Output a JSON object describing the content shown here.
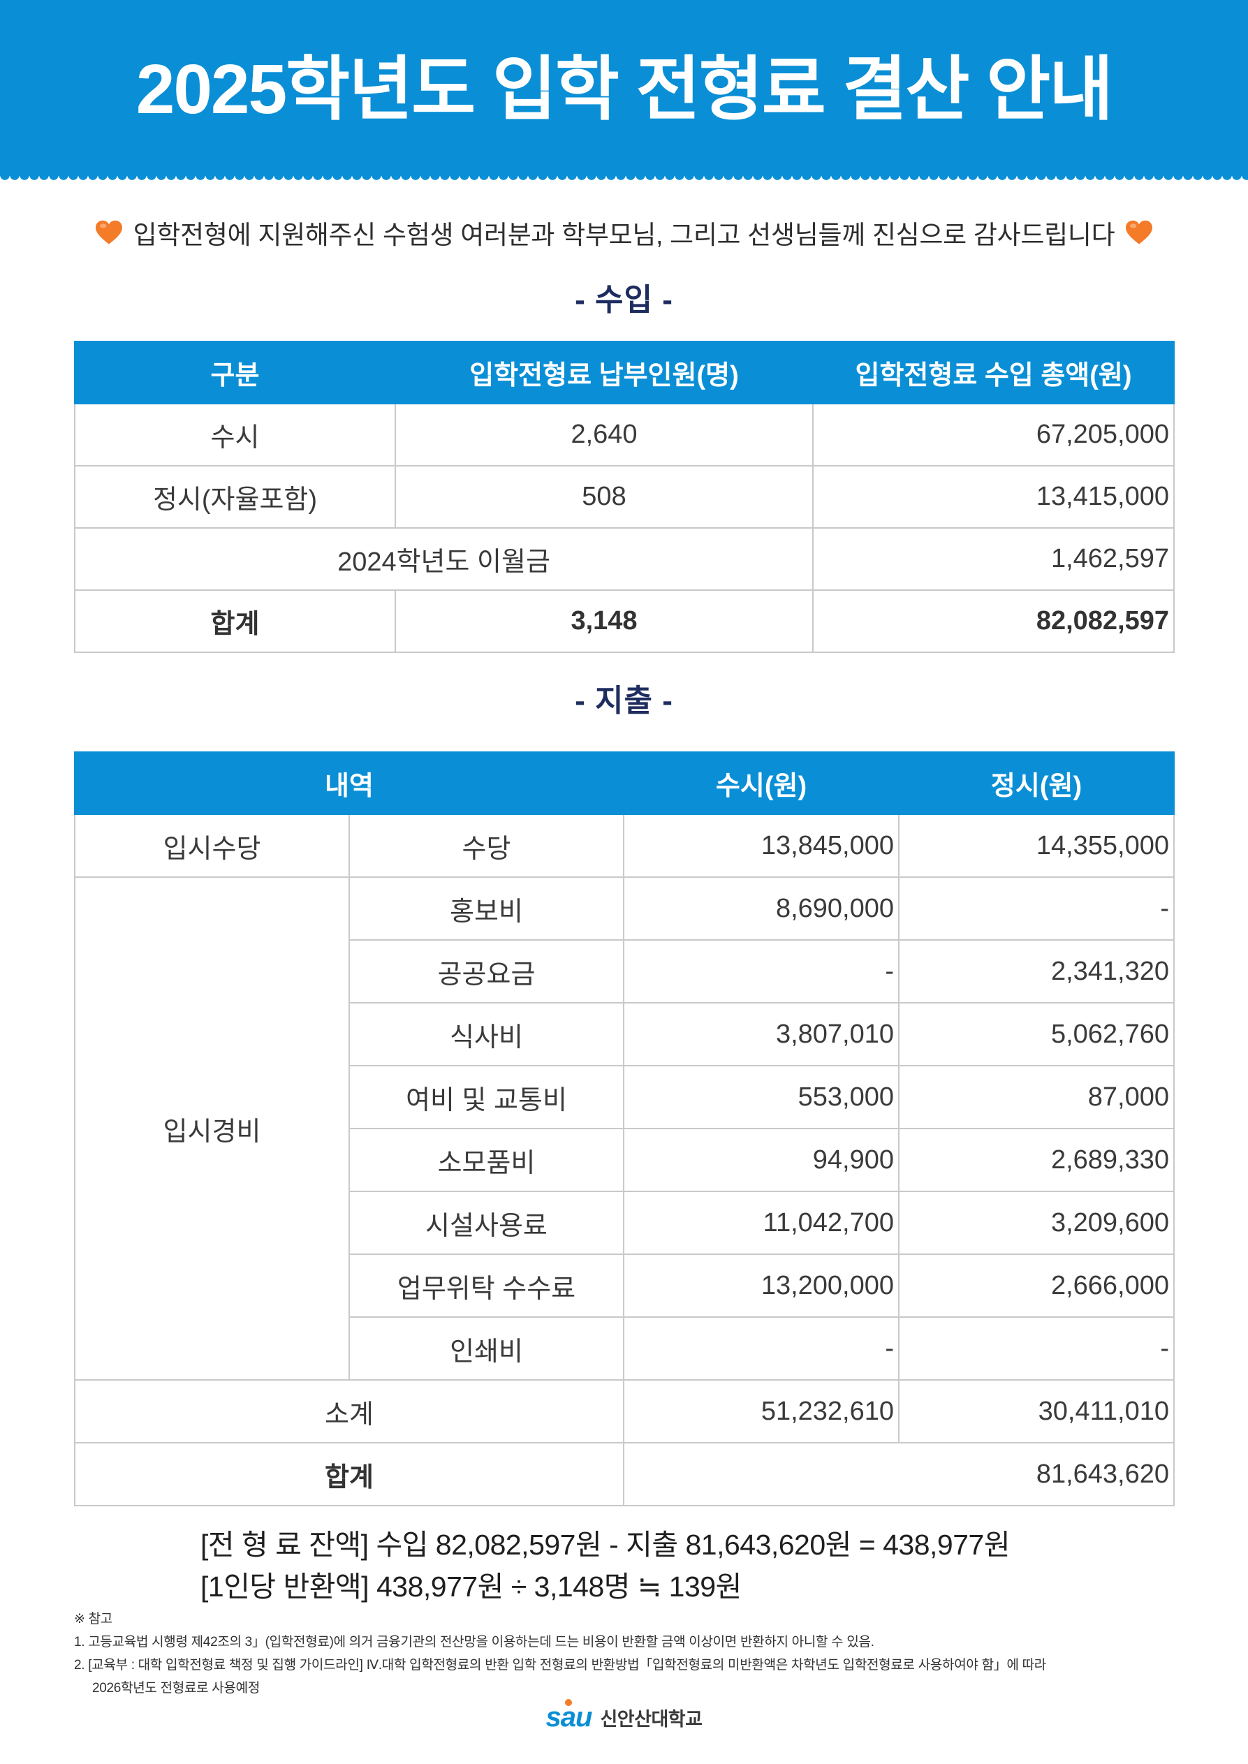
{
  "colors": {
    "primary": "#0a8fd6",
    "heading": "#1e2d5f",
    "heart": "#f47b28",
    "border": "#c9c9c9",
    "text": "#3a3a3a"
  },
  "header": {
    "title": "2025학년도 입학 전형료 결산 안내"
  },
  "greeting": {
    "icon": "heart-icon",
    "text": "입학전형에 지원해주신 수험생 여러분과 학부모님, 그리고 선생님들께 진심으로 감사드립니다"
  },
  "income": {
    "heading": "- 수입 -",
    "columns": {
      "category": "구분",
      "count": "입학전형료 납부인원(명)",
      "amount": "입학전형료 수입 총액(원)"
    },
    "rows": [
      {
        "category": "수시",
        "count": "2,640",
        "amount": "67,205,000"
      },
      {
        "category": "정시(자율포함)",
        "count": "508",
        "amount": "13,415,000"
      }
    ],
    "carryover": {
      "label": "2024학년도 이월금",
      "amount": "1,462,597"
    },
    "total": {
      "label": "합계",
      "count": "3,148",
      "amount": "82,082,597"
    }
  },
  "expense": {
    "heading": "- 지출 -",
    "columns": {
      "detail": "내역",
      "susi": "수시(원)",
      "jeongsi": "정시(원)"
    },
    "allowance": {
      "category": "입시수당",
      "items": [
        {
          "name": "수당",
          "susi": "13,845,000",
          "jeongsi": "14,355,000"
        }
      ]
    },
    "costs": {
      "category": "입시경비",
      "items": [
        {
          "name": "홍보비",
          "susi": "8,690,000",
          "jeongsi": "-"
        },
        {
          "name": "공공요금",
          "susi": "-",
          "jeongsi": "2,341,320"
        },
        {
          "name": "식사비",
          "susi": "3,807,010",
          "jeongsi": "5,062,760"
        },
        {
          "name": "여비 및 교통비",
          "susi": "553,000",
          "jeongsi": "87,000"
        },
        {
          "name": "소모품비",
          "susi": "94,900",
          "jeongsi": "2,689,330"
        },
        {
          "name": "시설사용료",
          "susi": "11,042,700",
          "jeongsi": "3,209,600"
        },
        {
          "name": "업무위탁 수수료",
          "susi": "13,200,000",
          "jeongsi": "2,666,000"
        },
        {
          "name": "인쇄비",
          "susi": "-",
          "jeongsi": "-"
        }
      ]
    },
    "subtotal": {
      "label": "소계",
      "susi": "51,232,610",
      "jeongsi": "30,411,010"
    },
    "total": {
      "label": "합계",
      "amount": "81,643,620"
    }
  },
  "summary": {
    "balance": "[전 형 료 잔액] 수입 82,082,597원 - 지출 81,643,620원 = 438,977원",
    "per_person": "[1인당 반환액] 438,977원 ÷ 3,148명 ≒ 139원"
  },
  "notes": {
    "title": "※ 참고",
    "item1": "1. 고등교육법 시행령 제42조의 3」(입학전형료)에 의거 금융기관의 전산망을 이용하는데 드는 비용이 반환할 금액 이상이면 반환하지 아니할 수 있음.",
    "item2": "2. [교육부 : 대학 입학전형료 책정 및 집행 가이드라인] Ⅳ.대학 입학전형료의 반환 입학 전형료의 반환방법「입학전형료의 미반환액은 차학년도 입학전형료로 사용하여야 함」에 따라",
    "item2_continued": "2026학년도 전형료로 사용예정"
  },
  "footer": {
    "logo": "sau",
    "name": "신안산대학교"
  }
}
